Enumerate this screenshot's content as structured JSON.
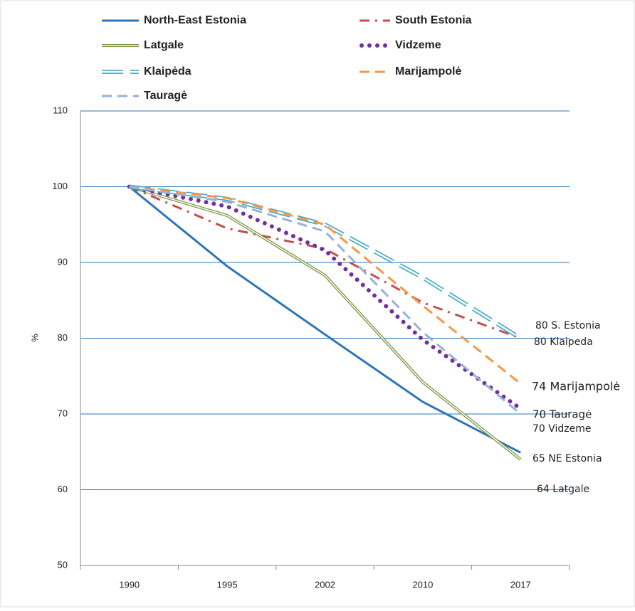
{
  "chart_data": {
    "type": "line",
    "y_label": "%",
    "categories": [
      "1990",
      "1995",
      "2002",
      "2010",
      "2017"
    ],
    "ylim": [
      50,
      110
    ],
    "yticks": [
      50,
      60,
      70,
      80,
      90,
      100,
      110
    ],
    "grid": true,
    "series": [
      {
        "name": "North-East Estonia",
        "color": "#2e75b6",
        "style": "solid",
        "values": [
          100,
          89.5,
          80.5,
          71.6,
          64.9
        ]
      },
      {
        "name": "South Estonia",
        "color": "#c0504d",
        "style": "dash-dot",
        "values": [
          100,
          94.5,
          91.8,
          84.7,
          80
        ]
      },
      {
        "name": "Latgale",
        "color": "#77933c",
        "style": "double",
        "values": [
          100,
          96.2,
          88.3,
          74.2,
          64
        ]
      },
      {
        "name": "Vidzeme",
        "color": "#7030a0",
        "style": "dotted",
        "values": [
          100,
          97.4,
          91.6,
          79.8,
          70.7
        ]
      },
      {
        "name": "Klaipėda",
        "color": "#4bacc6",
        "style": "double-dash",
        "values": [
          100,
          98.4,
          95,
          88,
          80
        ]
      },
      {
        "name": "Marijampolė",
        "color": "#f79646",
        "style": "dash",
        "values": [
          100,
          98.5,
          95,
          84.3,
          74
        ]
      },
      {
        "name": "Tauragė",
        "color": "#95b3d7",
        "style": "dash",
        "values": [
          100,
          98,
          94.1,
          80.8,
          70
        ]
      }
    ],
    "annotations": [
      "80 S. Estonia",
      "80 Klaipeda",
      "74 Marijampolė",
      "70 Tauragė",
      "70 Vidzeme",
      "65 NE Estonia",
      "64 Latgale"
    ]
  }
}
